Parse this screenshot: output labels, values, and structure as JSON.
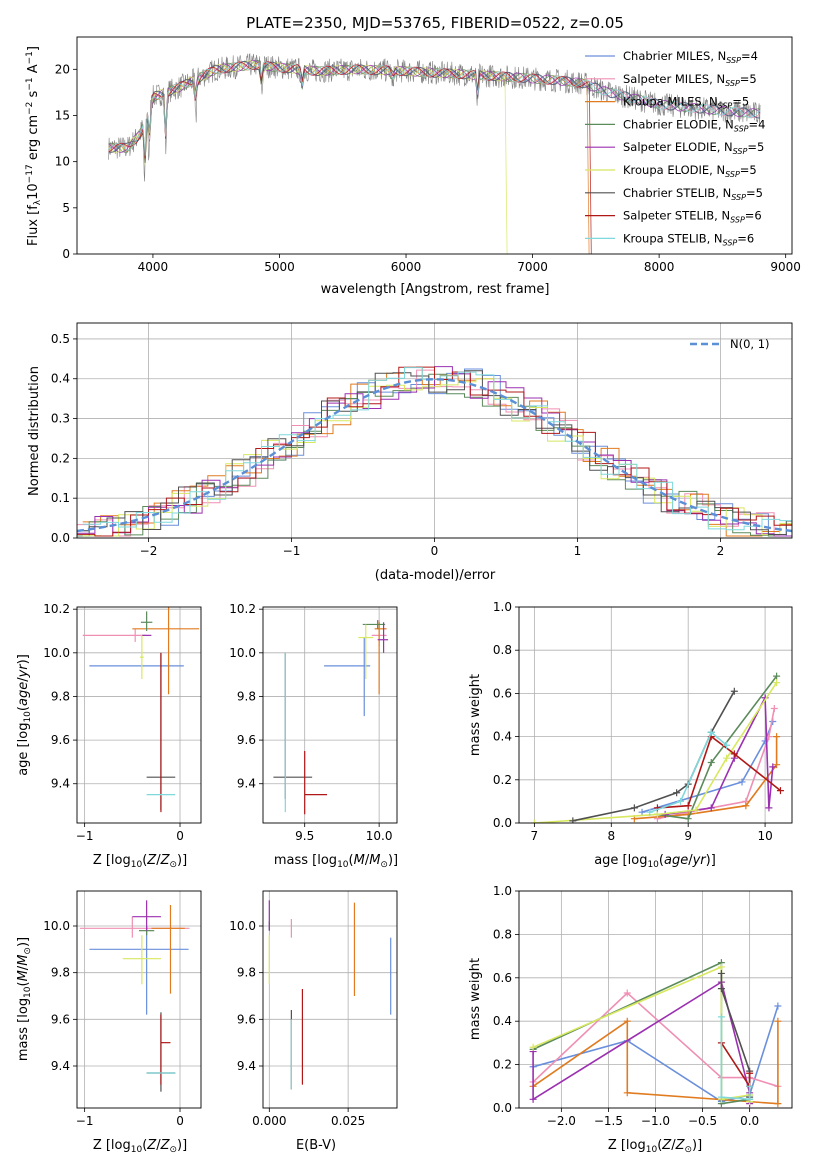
{
  "figure_title": "PLATE=2350, MJD=53765, FIBERID=0522, z=0.05",
  "models": [
    {
      "name": "Chabrier MILES",
      "nssp": "4",
      "color": "#6a8fdc"
    },
    {
      "name": "Salpeter MILES",
      "nssp": "5",
      "color": "#f08fb4"
    },
    {
      "name": "Kroupa MILES",
      "nssp": "5",
      "color": "#e07b20"
    },
    {
      "name": "Chabrier ELODIE",
      "nssp": "4",
      "color": "#5b8a5b"
    },
    {
      "name": "Salpeter ELODIE",
      "nssp": "5",
      "color": "#9b30b0"
    },
    {
      "name": "Kroupa ELODIE",
      "nssp": "5",
      "color": "#d8e860"
    },
    {
      "name": "Chabrier STELIB",
      "nssp": "5",
      "color": "#505050"
    },
    {
      "name": "Salpeter STELIB",
      "nssp": "6",
      "color": "#b01818"
    },
    {
      "name": "Kroupa STELIB",
      "nssp": "6",
      "color": "#7fd8dc"
    }
  ],
  "chart_data": [
    {
      "id": "spectrum",
      "type": "line",
      "xlabel": "wavelength [Angstrom, rest frame]",
      "ylabel": "Flux [f_λ 10^-17 erg cm^-2 s^-1 A^-1]",
      "xlim": [
        3400,
        9050
      ],
      "ylim": [
        0,
        23.5
      ],
      "xticks": [
        "4000",
        "5000",
        "6000",
        "7000",
        "8000",
        "9000"
      ],
      "yticks": [
        "0",
        "5",
        "10",
        "15",
        "20"
      ],
      "data_color": "#808080",
      "grid": false,
      "legend": "upper right",
      "spectrum_anchors": [
        [
          3650,
          11.5
        ],
        [
          3800,
          11.5
        ],
        [
          3900,
          13
        ],
        [
          4000,
          17
        ],
        [
          4200,
          18
        ],
        [
          4500,
          20
        ],
        [
          4800,
          20.5
        ],
        [
          5000,
          20.2
        ],
        [
          5300,
          19.8
        ],
        [
          5600,
          20
        ],
        [
          6000,
          19.8
        ],
        [
          6400,
          19.5
        ],
        [
          6800,
          19.2
        ],
        [
          7200,
          18.8
        ],
        [
          7400,
          18.5
        ],
        [
          7600,
          17.5
        ],
        [
          8000,
          16.2
        ],
        [
          8500,
          15.5
        ],
        [
          8800,
          15.2
        ]
      ]
    },
    {
      "id": "residuals",
      "type": "step",
      "xlabel": "(data-model)/error",
      "ylabel": "Normed distribution",
      "xlim": [
        -2.5,
        2.5
      ],
      "ylim": [
        0,
        0.54
      ],
      "xticks": [
        "−2",
        "−1",
        "0",
        "1",
        "2"
      ],
      "yticks": [
        "0.0",
        "0.1",
        "0.2",
        "0.3",
        "0.4",
        "0.5"
      ],
      "grid": true,
      "legend": "upper right",
      "reference_label": "N(0, 1)",
      "reference_color": "#5b8fd6"
    },
    {
      "id": "age_vs_Z",
      "type": "errorbar",
      "xlabel": "Z [log10(Z/Z⊙)]",
      "ylabel": "age [log10(age/yr)]",
      "xlim": [
        -1.08,
        0.22
      ],
      "ylim": [
        9.22,
        10.21
      ],
      "xticks": [
        "−1",
        "0"
      ],
      "yticks": [
        "9.4",
        "9.6",
        "9.8",
        "10.0",
        "10.2"
      ],
      "points": [
        {
          "x": -0.27,
          "y": 9.94,
          "xerr": [
            0.68,
            0.31
          ],
          "yerr": [
            0,
            0
          ],
          "color": "#6a8fdc"
        },
        {
          "x": -0.47,
          "y": 10.08,
          "xerr": [
            0.55,
            0.12
          ],
          "yerr": [
            0.03,
            0.03
          ],
          "color": "#f08fb4"
        },
        {
          "x": -0.12,
          "y": 10.11,
          "xerr": [
            0.38,
            0.32
          ],
          "yerr": [
            0.3,
            0.3
          ],
          "color": "#e07b20"
        },
        {
          "x": -0.35,
          "y": 10.14,
          "xerr": [
            0.06,
            0.06
          ],
          "yerr": [
            0.04,
            0.05
          ],
          "color": "#5b8a5b"
        },
        {
          "x": -0.35,
          "y": 10.08,
          "xerr": [
            0.05,
            0.05
          ],
          "yerr": [
            0,
            0
          ],
          "color": "#9b30b0"
        },
        {
          "x": -0.4,
          "y": 9.98,
          "xerr": [
            0.02,
            0.02
          ],
          "yerr": [
            0.1,
            0.1
          ],
          "color": "#d8e860"
        },
        {
          "x": -0.2,
          "y": 9.43,
          "xerr": [
            0.15,
            0.15
          ],
          "yerr": [
            0.15,
            0.57
          ],
          "color": "#505050"
        },
        {
          "x": -0.2,
          "y": 9.35,
          "xerr": [
            0,
            0
          ],
          "yerr": [
            0.08,
            0.65
          ],
          "color": "#b01818"
        },
        {
          "x": -0.2,
          "y": 9.35,
          "xerr": [
            0.15,
            0.15
          ],
          "yerr": [
            0,
            0
          ],
          "color": "#7fd8dc"
        }
      ]
    },
    {
      "id": "age_vs_mass",
      "type": "errorbar",
      "xlabel": "mass [log10(M/M⊙)]",
      "ylabel": "",
      "xlim": [
        9.22,
        10.12
      ],
      "ylim": [
        9.22,
        10.21
      ],
      "xticks": [
        "9.5",
        "10.0"
      ],
      "yticks": [
        "9.4",
        "9.6",
        "9.8",
        "10.0",
        "10.2"
      ],
      "points": [
        {
          "x": 9.9,
          "y": 9.94,
          "xerr": [
            0.27,
            0.04
          ],
          "yerr": [
            0.23,
            0.13
          ],
          "color": "#6a8fdc"
        },
        {
          "x": 10.0,
          "y": 10.08,
          "xerr": [
            0.05,
            0.05
          ],
          "yerr": [
            0.05,
            0.07
          ],
          "color": "#f08fb4"
        },
        {
          "x": 10.0,
          "y": 10.11,
          "xerr": [
            0.03,
            0.05
          ],
          "yerr": [
            0.3,
            0.03
          ],
          "color": "#e07b20"
        },
        {
          "x": 9.99,
          "y": 10.13,
          "xerr": [
            0.1,
            0.05
          ],
          "yerr": [
            0.02,
            0.02
          ],
          "color": "#5b8a5b"
        },
        {
          "x": 10.03,
          "y": 10.06,
          "xerr": [
            0.04,
            0.03
          ],
          "yerr": [
            0.06,
            0.08
          ],
          "color": "#9b30b0"
        },
        {
          "x": 9.91,
          "y": 10.07,
          "xerr": [
            0.05,
            0.05
          ],
          "yerr": [
            0.19,
            0.06
          ],
          "color": "#d8e860"
        },
        {
          "x": 9.37,
          "y": 9.43,
          "xerr": [
            0.08,
            0.18
          ],
          "yerr": [
            0.1,
            0.57
          ],
          "color": "#505050"
        },
        {
          "x": 9.5,
          "y": 9.35,
          "xerr": [
            0.0,
            0.15
          ],
          "yerr": [
            0.09,
            0.2
          ],
          "color": "#b01818"
        },
        {
          "x": 9.37,
          "y": 9.35,
          "xerr": [
            0,
            0
          ],
          "yerr": [
            0.08,
            0.65
          ],
          "color": "#7fd8dc"
        }
      ]
    },
    {
      "id": "weight_vs_age",
      "type": "line",
      "xlabel": "age [log10(age/yr)]",
      "ylabel": "mass weight",
      "xlim": [
        6.8,
        10.35
      ],
      "ylim": [
        0,
        1
      ],
      "xticks": [
        "7",
        "8",
        "9",
        "10"
      ],
      "yticks": [
        "0.0",
        "0.2",
        "0.4",
        "0.6",
        "0.8",
        "1.0"
      ],
      "grid": true,
      "series": [
        {
          "x": [
            8.4,
            9.7,
            10.0,
            10.1
          ],
          "y": [
            0.05,
            0.19,
            0.38,
            0.47
          ],
          "color": "#6a8fdc"
        },
        {
          "x": [
            8.6,
            9.0,
            9.75,
            10.05,
            10.12
          ],
          "y": [
            0.02,
            0.05,
            0.1,
            0.4,
            0.53
          ],
          "color": "#f08fb4"
        },
        {
          "x": [
            8.3,
            9.0,
            9.75,
            10.15,
            10.15
          ],
          "y": [
            0.02,
            0.04,
            0.08,
            0.27,
            0.4
          ],
          "color": "#e07b20"
        },
        {
          "x": [
            8.6,
            9.0,
            9.3,
            10.15
          ],
          "y": [
            0.04,
            0.02,
            0.28,
            0.68
          ],
          "color": "#5b8a5b"
        },
        {
          "x": [
            8.7,
            9.3,
            9.6,
            10.0,
            10.05,
            10.1
          ],
          "y": [
            0.04,
            0.07,
            0.3,
            0.58,
            0.07,
            0.26
          ],
          "color": "#9b30b0"
        },
        {
          "x": [
            7.0,
            8.6,
            9.1,
            9.5,
            10.15
          ],
          "y": [
            0.0,
            0.04,
            0.06,
            0.3,
            0.65
          ],
          "color": "#d8e860"
        },
        {
          "x": [
            7.5,
            8.3,
            8.85,
            9.0,
            9.3,
            9.6
          ],
          "y": [
            0.01,
            0.07,
            0.14,
            0.18,
            0.42,
            0.61
          ],
          "color": "#505050"
        },
        {
          "x": [
            8.6,
            9.0,
            9.3,
            9.6,
            10.2
          ],
          "y": [
            0.07,
            0.08,
            0.4,
            0.32,
            0.15
          ],
          "color": "#b01818"
        },
        {
          "x": [
            8.5,
            8.9,
            9.3,
            9.5
          ],
          "y": [
            0.05,
            0.1,
            0.42,
            0.36
          ],
          "color": "#7fd8dc"
        }
      ]
    },
    {
      "id": "mass_vs_Z",
      "type": "errorbar",
      "xlabel": "Z [log10(Z/Z⊙)]",
      "ylabel": "mass [log10(M/M⊙)]",
      "xlim": [
        -1.08,
        0.22
      ],
      "ylim": [
        9.22,
        10.15
      ],
      "xticks": [
        "−1",
        "0"
      ],
      "yticks": [
        "9.4",
        "9.6",
        "9.8",
        "10.0"
      ],
      "points": [
        {
          "x": -0.35,
          "y": 9.9,
          "xerr": [
            0.6,
            0.44
          ],
          "yerr": [
            0.28,
            0.1
          ],
          "color": "#6a8fdc"
        },
        {
          "x": -0.5,
          "y": 9.99,
          "xerr": [
            0.55,
            0.6
          ],
          "yerr": [
            0.04,
            0.05
          ],
          "color": "#f08fb4"
        },
        {
          "x": -0.1,
          "y": 9.99,
          "xerr": [
            0.2,
            0.15
          ],
          "yerr": [
            0.28,
            0.1
          ],
          "color": "#e07b20"
        },
        {
          "x": -0.35,
          "y": 9.98,
          "xerr": [
            0.08,
            0.08
          ],
          "yerr": [
            0.02,
            0.02
          ],
          "color": "#5b8a5b"
        },
        {
          "x": -0.35,
          "y": 10.04,
          "xerr": [
            0.15,
            0.15
          ],
          "yerr": [
            0.06,
            0.07
          ],
          "color": "#9b30b0"
        },
        {
          "x": -0.4,
          "y": 9.86,
          "xerr": [
            0.2,
            0.2
          ],
          "yerr": [
            0.11,
            0.1
          ],
          "color": "#d8e860"
        },
        {
          "x": -0.2,
          "y": 9.37,
          "xerr": [
            0.15,
            0.15
          ],
          "yerr": [
            0.08,
            0.26
          ],
          "color": "#505050"
        },
        {
          "x": -0.2,
          "y": 9.5,
          "xerr": [
            0,
            0.1
          ],
          "yerr": [
            0.18,
            0.12
          ],
          "color": "#b01818"
        },
        {
          "x": -0.2,
          "y": 9.37,
          "xerr": [
            0.15,
            0.15
          ],
          "yerr": [
            0,
            0
          ],
          "color": "#7fd8dc"
        }
      ]
    },
    {
      "id": "ebv",
      "type": "errorbar",
      "xlabel": "E(B-V)",
      "ylabel": "",
      "xlim": [
        -0.002,
        0.0405
      ],
      "ylim": [
        9.22,
        10.15
      ],
      "xticks": [
        "0.000",
        "0.025"
      ],
      "yticks": [
        "9.4",
        "9.6",
        "9.8",
        "10.0"
      ],
      "points": [
        {
          "x": 0.0385,
          "y": 9.78,
          "xerr": [
            0,
            0
          ],
          "yerr": [
            0.16,
            0.17
          ],
          "color": "#6a8fdc"
        },
        {
          "x": 0.007,
          "y": 9.99,
          "xerr": [
            0,
            0
          ],
          "yerr": [
            0.04,
            0.04
          ],
          "color": "#f08fb4"
        },
        {
          "x": 0.027,
          "y": 9.9,
          "xerr": [
            0,
            0
          ],
          "yerr": [
            0.2,
            0.2
          ],
          "color": "#e07b20"
        },
        {
          "x": 0.0,
          "y": 10.0,
          "xerr": [
            0,
            0
          ],
          "yerr": [
            0.02,
            0.02
          ],
          "color": "#5b8a5b"
        },
        {
          "x": 0.0,
          "y": 10.04,
          "xerr": [
            0,
            0
          ],
          "yerr": [
            0.06,
            0.07
          ],
          "color": "#9b30b0"
        },
        {
          "x": 0.0,
          "y": 9.86,
          "xerr": [
            0,
            0
          ],
          "yerr": [
            0.11,
            0.1
          ],
          "color": "#d8e860"
        },
        {
          "x": 0.007,
          "y": 9.47,
          "xerr": [
            0,
            0
          ],
          "yerr": [
            0.17,
            0.17
          ],
          "color": "#505050"
        },
        {
          "x": 0.0105,
          "y": 9.5,
          "xerr": [
            0,
            0
          ],
          "yerr": [
            0.18,
            0.23
          ],
          "color": "#b01818"
        },
        {
          "x": 0.007,
          "y": 9.45,
          "xerr": [
            0,
            0
          ],
          "yerr": [
            0.15,
            0.15
          ],
          "color": "#7fd8dc"
        }
      ]
    },
    {
      "id": "weight_vs_Z",
      "type": "line",
      "xlabel": "Z [log10(Z/Z⊙)]",
      "ylabel": "mass weight",
      "xlim": [
        -2.45,
        0.45
      ],
      "ylim": [
        0,
        1
      ],
      "xticks": [
        "−2.0",
        "−1.5",
        "−1.0",
        "−0.5",
        "0.0"
      ],
      "yticks": [
        "0.0",
        "0.2",
        "0.4",
        "0.6",
        "0.8",
        "1.0"
      ],
      "grid": true,
      "series": [
        {
          "x": [
            -2.3,
            -1.3,
            -0.3,
            0.0,
            0.3
          ],
          "y": [
            0.19,
            0.31,
            0.03,
            0.06,
            0.47
          ],
          "color": "#6a8fdc"
        },
        {
          "x": [
            -2.3,
            -1.3,
            -0.3,
            0.0,
            0.3
          ],
          "y": [
            0.12,
            0.53,
            0.14,
            0.14,
            0.1
          ],
          "color": "#f08fb4"
        },
        {
          "x": [
            -2.3,
            -1.3,
            -1.3,
            0.3,
            0.3
          ],
          "y": [
            0.1,
            0.4,
            0.07,
            0.02,
            0.4
          ],
          "color": "#e07b20"
        },
        {
          "x": [
            -2.3,
            -0.3,
            -0.3,
            0.0
          ],
          "y": [
            0.27,
            0.67,
            0.02,
            0.04
          ],
          "color": "#5b8a5b"
        },
        {
          "x": [
            -2.3,
            -2.3,
            -0.3,
            0.0,
            0.0
          ],
          "y": [
            0.26,
            0.04,
            0.58,
            0.07,
            0.02
          ],
          "color": "#9b30b0"
        },
        {
          "x": [
            -2.3,
            -0.3,
            -0.3,
            0.0,
            0.0
          ],
          "y": [
            0.28,
            0.65,
            0.04,
            0.06,
            0.03
          ],
          "color": "#d8e860"
        },
        {
          "x": [
            -0.3,
            -0.3,
            0.0,
            0.0
          ],
          "y": [
            0.62,
            0.55,
            0.17,
            0.05
          ],
          "color": "#505050"
        },
        {
          "x": [
            -0.3,
            0.0,
            0.0
          ],
          "y": [
            0.3,
            0.1,
            0.16
          ],
          "color": "#b01818"
        },
        {
          "x": [
            -0.3,
            -0.3,
            0.0,
            0.0
          ],
          "y": [
            0.42,
            0.05,
            0.04,
            0.1
          ],
          "color": "#7fd8dc"
        }
      ]
    }
  ]
}
